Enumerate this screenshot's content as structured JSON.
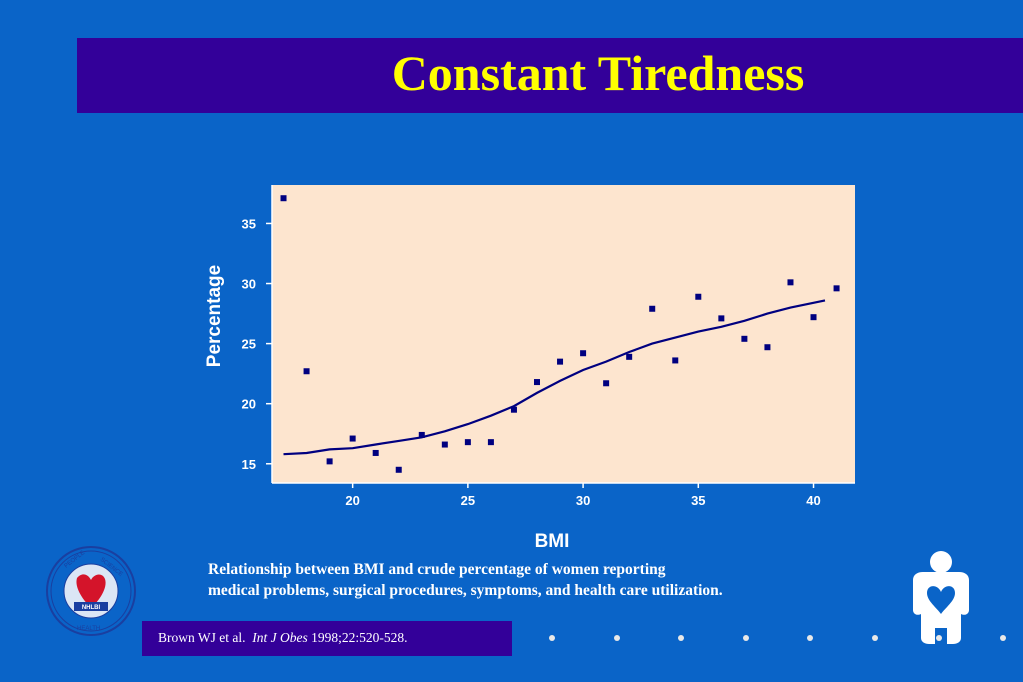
{
  "title": "Constant Tiredness",
  "caption": {
    "line1": "Relationship between BMI and crude percentage of women reporting",
    "line2": "medical problems, surgical procedures, symptoms, and health care utilization."
  },
  "citation": {
    "authors": "Brown WJ et al.",
    "journal": "Int J Obes",
    "details": "1998;22:520-528."
  },
  "logo": {
    "words": [
      "PEOPLE",
      "SCIENCE",
      "HEALTH",
      "NHLBI"
    ]
  },
  "colors": {
    "background": "#0a64c8",
    "title_bar": "#330099",
    "title_text": "#ffff00",
    "plot_background": "#fde5cf",
    "series": "#000080"
  },
  "chart_data": {
    "type": "scatter",
    "xlabel": "BMI",
    "ylabel": "Percentage",
    "xlim": [
      16.5,
      41.8
    ],
    "ylim": [
      13.4,
      38.2
    ],
    "xticks": [
      20,
      25,
      30,
      35,
      40
    ],
    "yticks": [
      15,
      20,
      25,
      30,
      35
    ],
    "grid": false,
    "points": [
      {
        "x": 17,
        "y": 37.1
      },
      {
        "x": 18,
        "y": 22.7
      },
      {
        "x": 19,
        "y": 15.2
      },
      {
        "x": 20,
        "y": 17.1
      },
      {
        "x": 21,
        "y": 15.9
      },
      {
        "x": 22,
        "y": 14.5
      },
      {
        "x": 23,
        "y": 17.4
      },
      {
        "x": 24,
        "y": 16.6
      },
      {
        "x": 25,
        "y": 16.8
      },
      {
        "x": 26,
        "y": 16.8
      },
      {
        "x": 27,
        "y": 19.5
      },
      {
        "x": 28,
        "y": 21.8
      },
      {
        "x": 29,
        "y": 23.5
      },
      {
        "x": 30,
        "y": 24.2
      },
      {
        "x": 31,
        "y": 21.7
      },
      {
        "x": 32,
        "y": 23.9
      },
      {
        "x": 33,
        "y": 27.9
      },
      {
        "x": 34,
        "y": 23.6
      },
      {
        "x": 35,
        "y": 28.9
      },
      {
        "x": 36,
        "y": 27.1
      },
      {
        "x": 37,
        "y": 25.4
      },
      {
        "x": 38,
        "y": 24.7
      },
      {
        "x": 39,
        "y": 30.1
      },
      {
        "x": 40,
        "y": 27.2
      },
      {
        "x": 41,
        "y": 29.6
      }
    ],
    "fit_line": [
      {
        "x": 17.0,
        "y": 15.8
      },
      {
        "x": 18.0,
        "y": 15.9
      },
      {
        "x": 19.0,
        "y": 16.2
      },
      {
        "x": 20.0,
        "y": 16.3
      },
      {
        "x": 21.0,
        "y": 16.6
      },
      {
        "x": 22.0,
        "y": 16.9
      },
      {
        "x": 23.0,
        "y": 17.2
      },
      {
        "x": 24.0,
        "y": 17.7
      },
      {
        "x": 25.0,
        "y": 18.3
      },
      {
        "x": 26.0,
        "y": 19.0
      },
      {
        "x": 27.0,
        "y": 19.8
      },
      {
        "x": 28.0,
        "y": 20.9
      },
      {
        "x": 29.0,
        "y": 21.9
      },
      {
        "x": 30.0,
        "y": 22.8
      },
      {
        "x": 31.0,
        "y": 23.5
      },
      {
        "x": 32.0,
        "y": 24.3
      },
      {
        "x": 33.0,
        "y": 25.0
      },
      {
        "x": 34.0,
        "y": 25.5
      },
      {
        "x": 35.0,
        "y": 26.0
      },
      {
        "x": 36.0,
        "y": 26.4
      },
      {
        "x": 37.0,
        "y": 26.9
      },
      {
        "x": 38.0,
        "y": 27.5
      },
      {
        "x": 39.0,
        "y": 28.0
      },
      {
        "x": 40.0,
        "y": 28.4
      },
      {
        "x": 40.5,
        "y": 28.6
      }
    ]
  }
}
